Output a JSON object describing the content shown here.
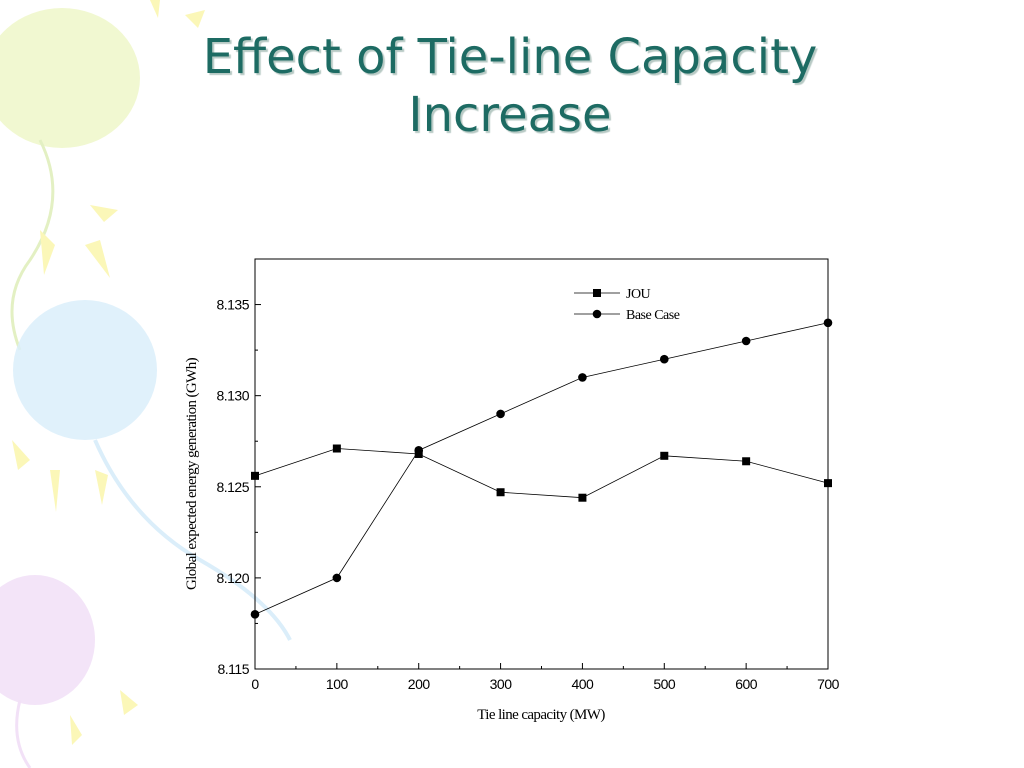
{
  "slide": {
    "title_line1": "Effect of Tie-line Capacity",
    "title_line2": "Increase"
  },
  "colors": {
    "title": "#1d6b63",
    "axis": "#000000",
    "series": "#000000"
  },
  "chart_data": {
    "type": "line",
    "title": "",
    "xlabel": "Tie line capacity (MW)",
    "ylabel": "Global expected energy generation (GWh)",
    "xlim": [
      0,
      700
    ],
    "ylim": [
      8.115,
      8.1375
    ],
    "x_ticks": [
      "0",
      "100",
      "200",
      "300",
      "400",
      "500",
      "600",
      "700"
    ],
    "y_ticks": [
      "8.115",
      "8.120",
      "8.125",
      "8.130",
      "8.135"
    ],
    "x": [
      0,
      100,
      200,
      300,
      400,
      500,
      600,
      700
    ],
    "grid": false,
    "legend_position": "top-right",
    "series": [
      {
        "name": "JOU",
        "marker": "square",
        "values": [
          8.1256,
          8.1271,
          8.1268,
          8.1247,
          8.1244,
          8.1267,
          8.1264,
          8.1252
        ]
      },
      {
        "name": "Base Case",
        "marker": "circle",
        "values": [
          8.118,
          8.12,
          8.127,
          8.129,
          8.131,
          8.132,
          8.133,
          8.134
        ]
      }
    ]
  }
}
